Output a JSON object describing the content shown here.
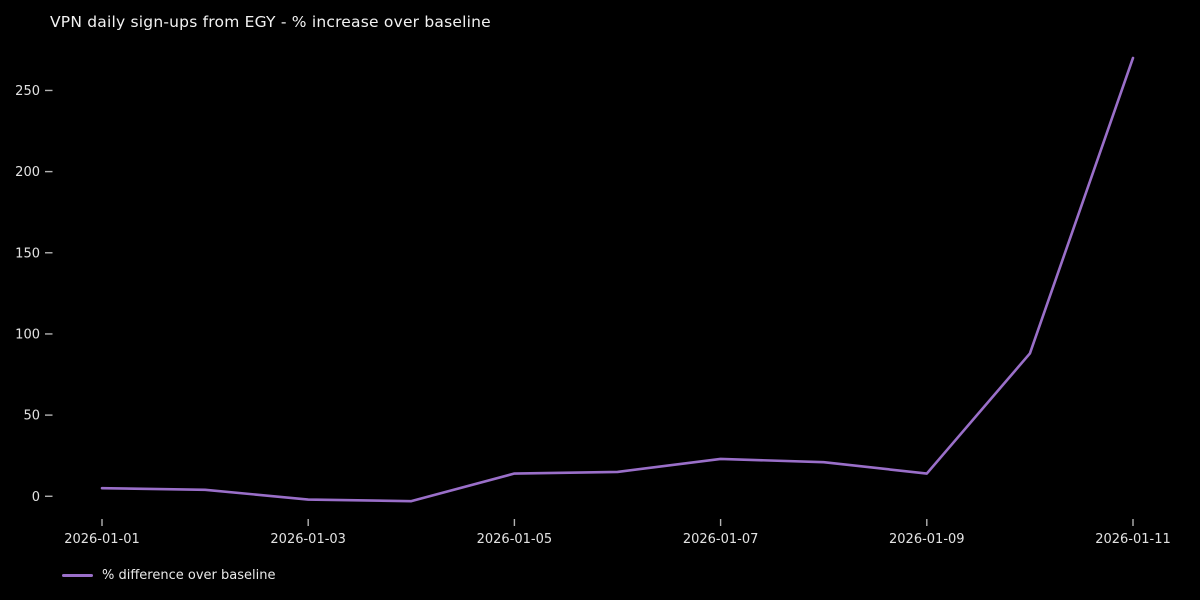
{
  "colors": {
    "background": "#000000",
    "line": "#9a6fc9",
    "title_text": "#f2f2f2",
    "tick_text": "#e2e2e2",
    "tick_mark": "#b3b3b3"
  },
  "chart_data": {
    "type": "line",
    "title": "VPN daily sign-ups from EGY - % increase over baseline",
    "categories": [
      "2026-01-01",
      "2026-01-02",
      "2026-01-03",
      "2026-01-04",
      "2026-01-05",
      "2026-01-06",
      "2026-01-07",
      "2026-01-08",
      "2026-01-09",
      "2026-01-10",
      "2026-01-11"
    ],
    "series": [
      {
        "name": "% difference over baseline",
        "values": [
          5,
          4,
          -2,
          -3,
          14,
          15,
          23,
          21,
          14,
          88,
          270
        ]
      }
    ],
    "xlabel": "",
    "ylabel": "",
    "yticks": [
      0,
      50,
      100,
      150,
      200,
      250
    ],
    "xticks": [
      "2026-01-01",
      "2026-01-03",
      "2026-01-05",
      "2026-01-07",
      "2026-01-09",
      "2026-01-11"
    ],
    "ylim": [
      -14,
      278
    ],
    "grid": false,
    "legend_position": "bottom-left",
    "legend": [
      "% difference over baseline"
    ]
  }
}
